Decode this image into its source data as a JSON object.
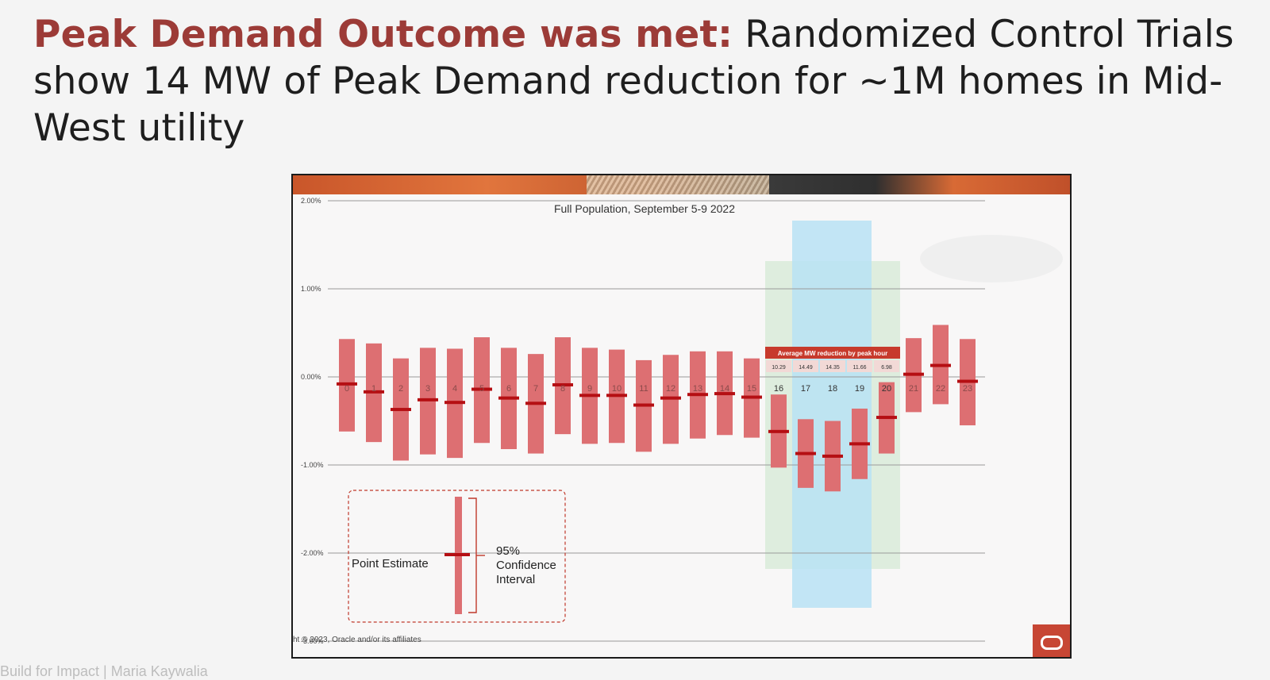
{
  "headline": {
    "lead": "Peak Demand Outcome was met:",
    "body": " Randomized Control Trials show 14 MW of Peak Demand reduction for ~1M homes in Mid-West utility"
  },
  "colors": {
    "bar": "#dd6f72",
    "estimate": "#b50f13",
    "peak_band": "#d9ebd9",
    "hour_band": "#b8e2f5",
    "table_header": "#c73a2c",
    "table_cell": "#f2d9d6"
  },
  "chart_data": {
    "type": "bar",
    "title": "Full Population, September 5-9 2022",
    "y_unit": "%",
    "ylim": [
      -3.0,
      2.0
    ],
    "y_ticks": [
      {
        "value": 2.0,
        "label": "2.00%"
      },
      {
        "value": 1.0,
        "label": "1.00%"
      },
      {
        "value": 0.0,
        "label": "0.00%"
      },
      {
        "value": -1.0,
        "label": "-1.00%"
      },
      {
        "value": -2.0,
        "label": "-2.00%"
      },
      {
        "value": -3.0,
        "label": "-3.00%"
      }
    ],
    "categories": [
      "0",
      "1",
      "2",
      "3",
      "4",
      "5",
      "6",
      "7",
      "8",
      "9",
      "10",
      "11",
      "12",
      "13",
      "14",
      "15",
      "16",
      "17",
      "18",
      "19",
      "20",
      "21",
      "22",
      "23"
    ],
    "point_estimate": [
      -0.08,
      -0.17,
      -0.37,
      -0.26,
      -0.29,
      -0.14,
      -0.24,
      -0.3,
      -0.09,
      -0.21,
      -0.21,
      -0.32,
      -0.24,
      -0.2,
      -0.19,
      -0.23,
      -0.62,
      -0.87,
      -0.9,
      -0.76,
      -0.46,
      0.03,
      0.13,
      -0.05
    ],
    "ci_upper": [
      0.43,
      0.38,
      0.21,
      0.33,
      0.32,
      0.45,
      0.33,
      0.26,
      0.45,
      0.33,
      0.31,
      0.19,
      0.25,
      0.29,
      0.29,
      0.21,
      -0.2,
      -0.48,
      -0.5,
      -0.36,
      -0.06,
      0.44,
      0.59,
      0.43
    ],
    "ci_lower": [
      -0.62,
      -0.74,
      -0.95,
      -0.88,
      -0.92,
      -0.75,
      -0.82,
      -0.87,
      -0.65,
      -0.76,
      -0.75,
      -0.85,
      -0.76,
      -0.7,
      -0.66,
      -0.69,
      -1.03,
      -1.26,
      -1.3,
      -1.16,
      -0.87,
      -0.4,
      -0.31,
      -0.55
    ],
    "peak_window_hours": [
      16,
      20
    ],
    "highlight_hours": [
      17,
      19
    ],
    "peak_table": {
      "header": "Average MW reduction by peak hour",
      "values": [
        "10.29",
        "14.49",
        "14.35",
        "11.66",
        "6.98"
      ]
    },
    "legend": {
      "point_label": "Point Estimate",
      "ci_label_lines": [
        "95%",
        "Confidence",
        "Interval"
      ]
    }
  },
  "footer": {
    "copyright": "ht © 2023, Oracle and/or its affiliates",
    "ghost_text": "Build for Impact | Maria Kaywalia"
  }
}
